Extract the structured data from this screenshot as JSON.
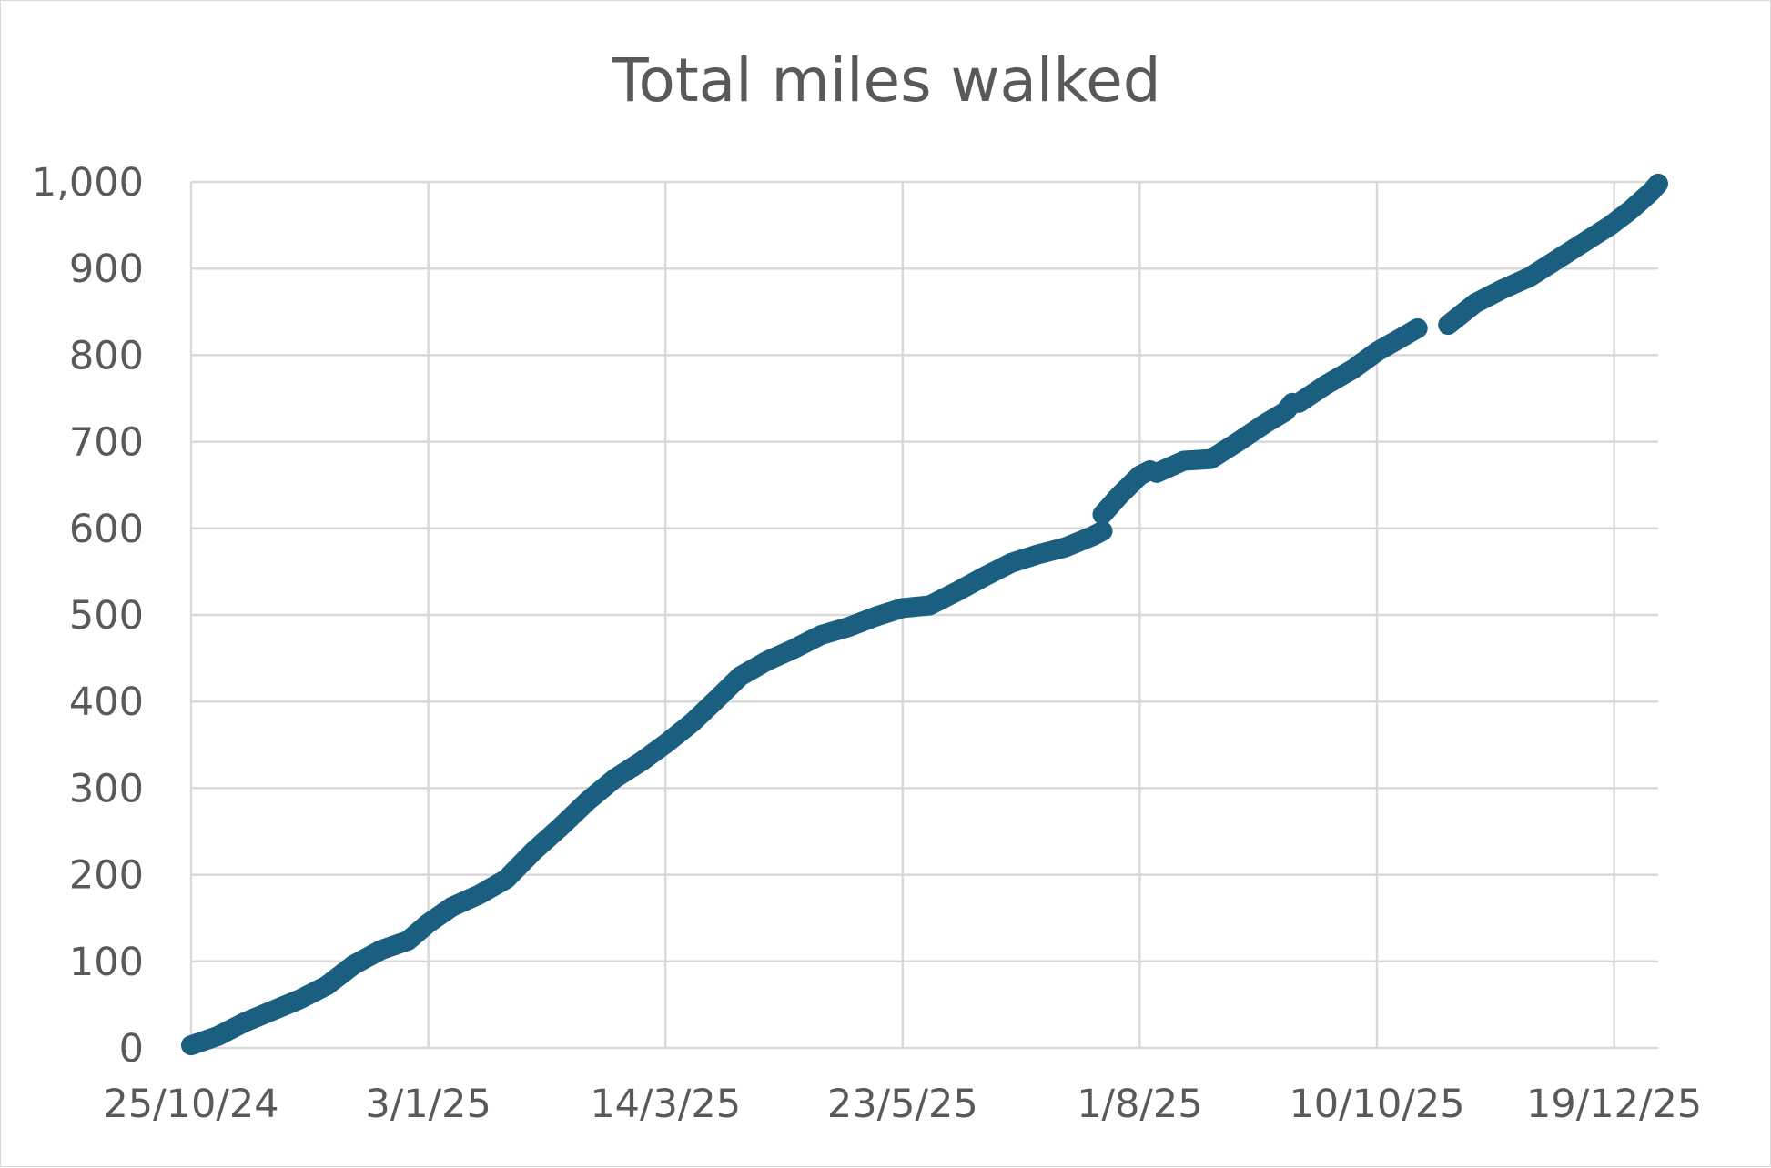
{
  "chart_data": {
    "type": "line",
    "title": "Total miles walked",
    "xlabel": "",
    "ylabel": "",
    "x_axis_kind": "date",
    "xlim": [
      "2024-10-25",
      "2026-01-01"
    ],
    "ylim": [
      0,
      1000
    ],
    "y_ticks": [
      0,
      100,
      200,
      300,
      400,
      500,
      600,
      700,
      800,
      900,
      1000
    ],
    "y_tick_labels": [
      "0",
      "100",
      "200",
      "300",
      "400",
      "500",
      "600",
      "700",
      "800",
      "900",
      "1,000"
    ],
    "x_ticks": [
      "2024-10-25",
      "2025-01-03",
      "2025-03-14",
      "2025-05-23",
      "2025-08-01",
      "2025-10-10",
      "2025-12-19"
    ],
    "x_tick_labels": [
      "25/10/24",
      "3/1/25",
      "14/3/25",
      "23/5/25",
      "1/8/25",
      "10/10/25",
      "19/12/25"
    ],
    "grid": true,
    "legend": "none",
    "color": "#1a5f80",
    "series": [
      {
        "segments": [
          {
            "x": [
              "2024-10-25",
              "2024-11-02",
              "2024-11-10",
              "2024-11-18",
              "2024-11-26",
              "2024-12-04",
              "2024-12-12",
              "2024-12-20",
              "2024-12-28",
              "2025-01-03",
              "2025-01-10",
              "2025-01-18",
              "2025-01-26",
              "2025-02-03",
              "2025-02-11",
              "2025-02-19",
              "2025-02-27",
              "2025-03-07",
              "2025-03-14",
              "2025-03-22",
              "2025-03-30",
              "2025-04-05",
              "2025-04-13",
              "2025-04-21",
              "2025-04-29",
              "2025-05-07",
              "2025-05-15",
              "2025-05-23",
              "2025-05-31",
              "2025-06-08",
              "2025-06-16",
              "2025-06-24",
              "2025-07-02",
              "2025-07-10",
              "2025-07-18",
              "2025-07-21"
            ],
            "y": [
              3,
              14,
              30,
              43,
              56,
              72,
              96,
              113,
              124,
              144,
              163,
              177,
              195,
              227,
              255,
              285,
              311,
              331,
              351,
              376,
              406,
              429,
              447,
              461,
              477,
              486,
              498,
              508,
              511,
              527,
              544,
              560,
              570,
              578,
              591,
              597
            ]
          },
          {
            "x": [
              "2025-07-21",
              "2025-07-26",
              "2025-08-01",
              "2025-08-04"
            ],
            "y": [
              616,
              638,
              661,
              667
            ]
          },
          {
            "x": [
              "2025-08-06",
              "2025-08-14",
              "2025-08-22",
              "2025-08-30",
              "2025-09-07",
              "2025-09-13",
              "2025-09-15"
            ],
            "y": [
              664,
              678,
              680,
              700,
              721,
              735,
              745
            ]
          },
          {
            "x": [
              "2025-09-17",
              "2025-09-25",
              "2025-10-03",
              "2025-10-10",
              "2025-10-18",
              "2025-10-22"
            ],
            "y": [
              745,
              766,
              784,
              804,
              822,
              831
            ]
          },
          {
            "x": [
              "2025-10-31",
              "2025-11-08",
              "2025-11-16",
              "2025-11-24",
              "2025-12-02",
              "2025-12-10",
              "2025-12-18",
              "2025-12-24",
              "2025-12-30",
              "2026-01-01"
            ],
            "y": [
              835,
              860,
              876,
              890,
              910,
              930,
              950,
              968,
              989,
              998
            ]
          }
        ]
      }
    ]
  }
}
